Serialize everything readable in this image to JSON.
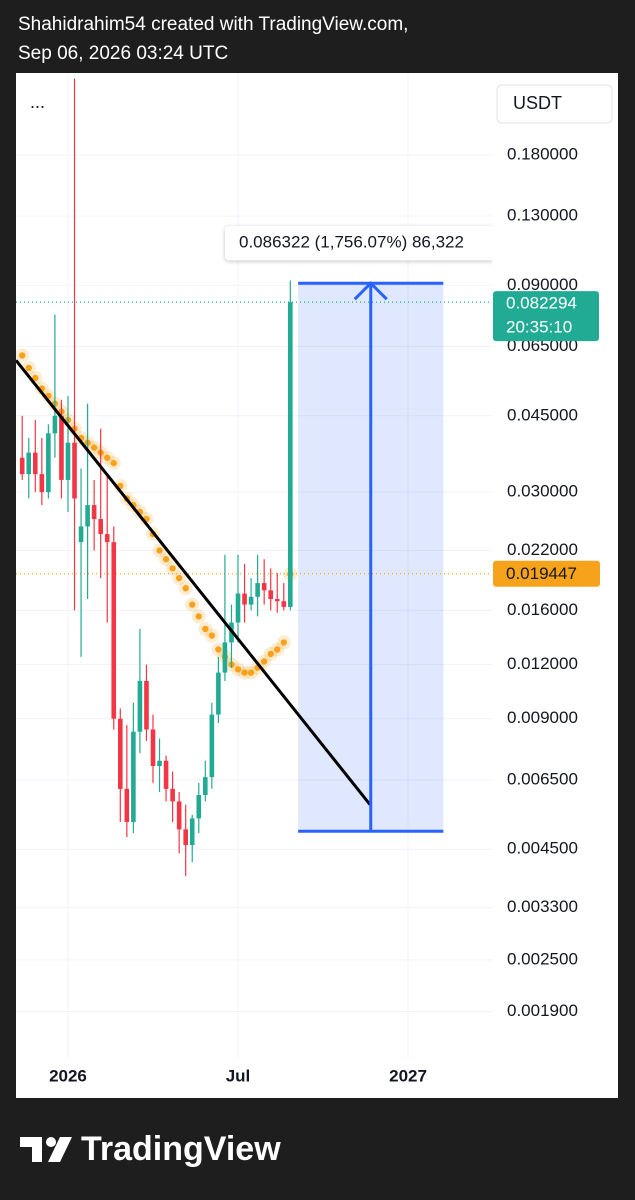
{
  "header": {
    "line1": "Shahidrahim54 created with TradingView.com,",
    "line2": "Sep 06, 2026 03:24 UTC"
  },
  "chart_data": {
    "type": "candlestick",
    "scale": "log",
    "menu": "...",
    "currency": "USDT",
    "up_color": "#22ab94",
    "down_color": "#f23645",
    "x": [
      -7,
      -6,
      -5,
      -4,
      -3,
      -2,
      -1,
      0,
      1,
      2,
      3,
      4,
      5,
      6,
      7,
      8,
      9,
      10,
      11,
      12,
      13,
      14,
      15,
      16,
      17,
      18,
      19,
      20,
      21,
      22,
      23,
      24,
      25,
      26,
      27,
      28,
      29,
      30,
      31,
      32,
      33,
      34
    ],
    "open": [
      0.036,
      0.033,
      0.037,
      0.033,
      0.03,
      0.041,
      0.045,
      0.032,
      0.039,
      0.023,
      0.025,
      0.028,
      0.026,
      0.024,
      0.023,
      0.009,
      0.0062,
      0.0052,
      0.0084,
      0.011,
      0.0085,
      0.007,
      0.0072,
      0.0062,
      0.0058,
      0.005,
      0.0046,
      0.0053,
      0.006,
      0.0066,
      0.0092,
      0.0115,
      0.0135,
      0.015,
      0.0175,
      0.0165,
      0.0172,
      0.0185,
      0.0178,
      0.017,
      0.0168,
      0.0163
    ],
    "high": [
      0.045,
      0.04,
      0.044,
      0.04,
      0.043,
      0.077,
      0.049,
      0.05,
      0.27,
      0.034,
      0.048,
      0.032,
      0.042,
      0.033,
      0.025,
      0.0095,
      0.0087,
      0.0098,
      0.0145,
      0.012,
      0.0092,
      0.0081,
      0.0074,
      0.0068,
      0.0061,
      0.0057,
      0.0054,
      0.0064,
      0.0072,
      0.0098,
      0.0125,
      0.0215,
      0.0165,
      0.0215,
      0.0205,
      0.019,
      0.0215,
      0.021,
      0.02,
      0.0195,
      0.0185,
      0.0923
    ],
    "low": [
      0.032,
      0.029,
      0.03,
      0.028,
      0.029,
      0.036,
      0.029,
      0.027,
      0.016,
      0.0125,
      0.017,
      0.022,
      0.019,
      0.015,
      0.0085,
      0.0052,
      0.0048,
      0.0049,
      0.0075,
      0.008,
      0.0064,
      0.0061,
      0.0058,
      0.0052,
      0.0044,
      0.0039,
      0.0042,
      0.0049,
      0.0058,
      0.0062,
      0.0088,
      0.011,
      0.0118,
      0.0135,
      0.015,
      0.016,
      0.0155,
      0.0165,
      0.016,
      0.0158,
      0.016,
      0.016
    ],
    "close": [
      0.033,
      0.037,
      0.033,
      0.03,
      0.041,
      0.045,
      0.032,
      0.039,
      0.029,
      0.025,
      0.028,
      0.026,
      0.024,
      0.023,
      0.009,
      0.0062,
      0.0052,
      0.0084,
      0.011,
      0.0085,
      0.007,
      0.0072,
      0.0062,
      0.0058,
      0.005,
      0.0046,
      0.0053,
      0.006,
      0.0066,
      0.0092,
      0.0115,
      0.0135,
      0.015,
      0.0175,
      0.0165,
      0.0172,
      0.0185,
      0.0178,
      0.017,
      0.0168,
      0.0163,
      0.0823
    ],
    "indicator": {
      "color": "#f7a21b",
      "values": [
        0.062,
        0.058,
        0.055,
        0.052,
        0.05,
        0.048,
        0.046,
        0.044,
        0.042,
        0.04,
        0.039,
        0.038,
        0.037,
        0.036,
        0.035,
        0.031,
        0.029,
        0.028,
        0.027,
        0.026,
        0.024,
        0.022,
        0.021,
        0.02,
        0.019,
        0.018,
        0.0165,
        0.0155,
        0.0145,
        0.014,
        0.013,
        0.0125,
        0.012,
        0.0117,
        0.0115,
        0.0115,
        0.0118,
        0.0122,
        0.0127,
        0.013,
        0.0135,
        0.0194
      ]
    },
    "trendline": {
      "color": "#000000",
      "x": [
        -7.95,
        46.2
      ],
      "values": [
        0.0604,
        0.0057
      ]
    },
    "measure": {
      "color": "#2962ff",
      "x": [
        35.2,
        57.4
      ],
      "values": [
        0.091,
        0.00495
      ],
      "label": "0.086322 (1,756.07%) 86,322"
    },
    "last_price": 0.082294,
    "countdown": "20:35:10",
    "indicator_last": 0.019447,
    "xlim": [
      -7.95,
      65.3
    ],
    "xticks": [
      {
        "value": 0,
        "label": "2026"
      },
      {
        "value": 26,
        "label": "Jul"
      },
      {
        "value": 52,
        "label": "2027"
      }
    ],
    "ylim": [
      0.0012,
      0.278
    ],
    "yticks": [
      {
        "value": 0.18,
        "label": "0.180000"
      },
      {
        "value": 0.13,
        "label": "0.130000"
      },
      {
        "value": 0.09,
        "label": "0.090000"
      },
      {
        "value": 0.065,
        "label": "0.065000"
      },
      {
        "value": 0.045,
        "label": "0.045000"
      },
      {
        "value": 0.03,
        "label": "0.030000"
      },
      {
        "value": 0.022,
        "label": "0.022000"
      },
      {
        "value": 0.016,
        "label": "0.016000"
      },
      {
        "value": 0.012,
        "label": "0.012000"
      },
      {
        "value": 0.009,
        "label": "0.009000"
      },
      {
        "value": 0.0065,
        "label": "0.006500"
      },
      {
        "value": 0.0045,
        "label": "0.004500"
      },
      {
        "value": 0.0033,
        "label": "0.003300"
      },
      {
        "value": 0.0025,
        "label": "0.002500"
      },
      {
        "value": 0.0019,
        "label": "0.001900"
      }
    ],
    "grid": true
  },
  "footer": {
    "brand": "TradingView"
  }
}
